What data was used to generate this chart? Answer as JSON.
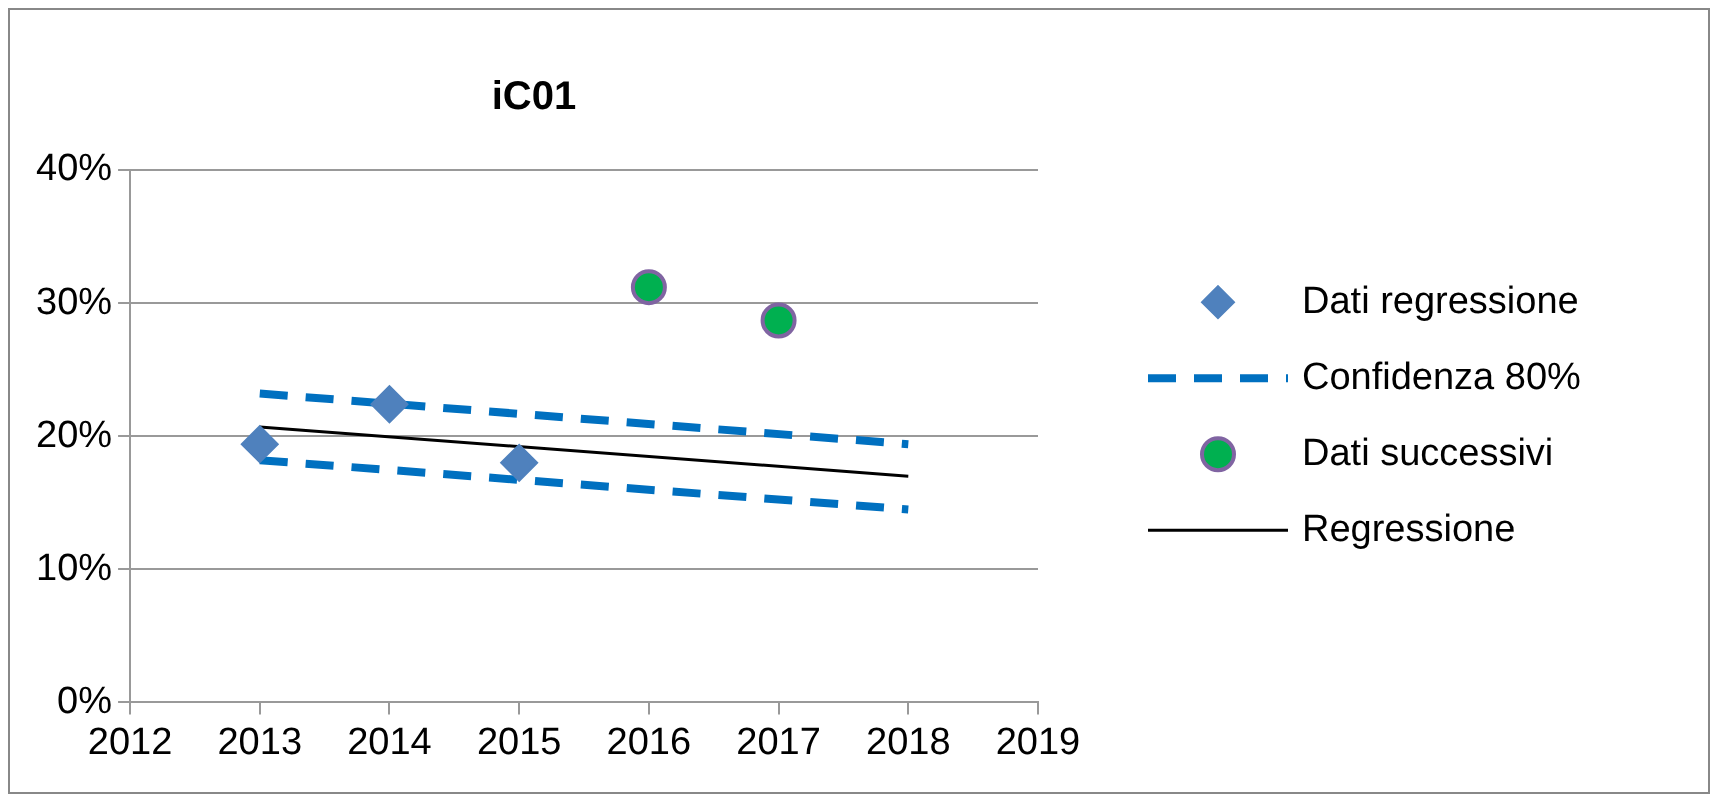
{
  "chart_data": {
    "type": "scatter",
    "title": "iC01",
    "xlim": [
      2012,
      2019
    ],
    "xticks": [
      2012,
      2013,
      2014,
      2015,
      2016,
      2017,
      2018,
      2019
    ],
    "ylim": [
      0,
      40
    ],
    "yticks": [
      {
        "value": 0,
        "label": "0%"
      },
      {
        "value": 10,
        "label": "10%"
      },
      {
        "value": 20,
        "label": "20%"
      },
      {
        "value": 30,
        "label": "30%"
      },
      {
        "value": 40,
        "label": "40%"
      }
    ],
    "grid": "y",
    "legend": "right",
    "series": [
      {
        "name": "Dati regressione",
        "type": "scatter",
        "marker": "diamond",
        "color": "#4f81bd",
        "x": [
          2013,
          2014,
          2015
        ],
        "values": [
          19.4,
          22.4,
          18.0
        ]
      },
      {
        "name": "Confidenza 80%",
        "type": "line",
        "line_style": "dashed",
        "marker": "none",
        "color": "#0070c0",
        "x": [
          2013,
          2018
        ],
        "values": [
          23.2,
          19.4
        ]
      },
      {
        "type": "line",
        "line_style": "dashed",
        "marker": "none",
        "color": "#0070c0",
        "x": [
          2013,
          2018
        ],
        "values": [
          18.2,
          14.5
        ]
      },
      {
        "name": "Dati successivi",
        "type": "scatter",
        "marker": "circle",
        "color": "#00b050",
        "x": [
          2016,
          2017
        ],
        "values": [
          31.2,
          28.7
        ]
      },
      {
        "name": "Regressione",
        "type": "line",
        "line_style": "solid",
        "marker": "none",
        "color": "#000000",
        "x": [
          2013,
          2018
        ],
        "values": [
          20.7,
          17.0
        ]
      }
    ]
  }
}
